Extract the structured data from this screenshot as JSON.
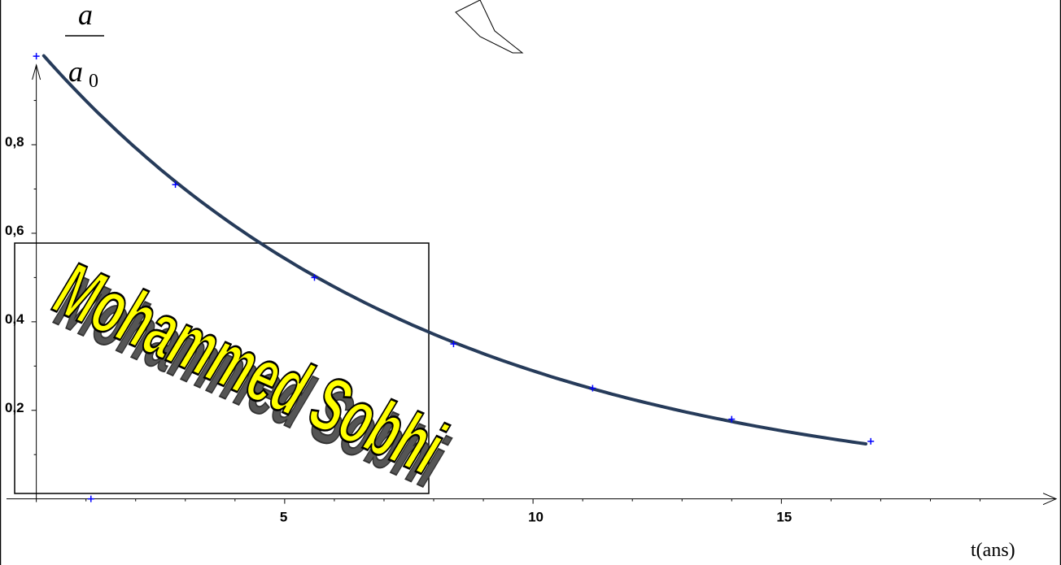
{
  "chart_data": {
    "type": "scatter",
    "title": "",
    "xlabel": "t(ans)",
    "ylabel": {
      "numerator": "a",
      "denominator": "a",
      "denominator_subscript": "0"
    },
    "xlim": [
      -0.6,
      20.4
    ],
    "ylim": [
      -0.03,
      0.98
    ],
    "x_ticks": [
      {
        "value": 5,
        "label": "5"
      },
      {
        "value": 10,
        "label": "10"
      },
      {
        "value": 15,
        "label": "15"
      }
    ],
    "y_ticks": [
      {
        "value": 0.2,
        "label": "0,2"
      },
      {
        "value": 0.4,
        "label": "0,4"
      },
      {
        "value": 0.6,
        "label": "0,6"
      },
      {
        "value": 0.8,
        "label": "0,8"
      }
    ],
    "grid": false,
    "points": [
      {
        "x": 0.0,
        "y": 1.0
      },
      {
        "x": 1.1,
        "y": 0.0
      },
      {
        "x": 2.8,
        "y": 0.71
      },
      {
        "x": 5.6,
        "y": 0.5
      },
      {
        "x": 8.4,
        "y": 0.35
      },
      {
        "x": 11.2,
        "y": 0.25
      },
      {
        "x": 14.0,
        "y": 0.18
      },
      {
        "x": 16.8,
        "y": 0.13
      }
    ],
    "fit_curve": {
      "x_start": 0.15,
      "x_end": 16.7,
      "y0": 1.02,
      "half_life": 5.5
    },
    "colors": {
      "points": "#0000ff",
      "curve": "#263b5a",
      "axes": "#000000",
      "watermark_fill": "#ffff00",
      "watermark_outline": "#000000"
    }
  },
  "watermark": {
    "text": "Mohammed Sobhi",
    "icon": "wordart-signature-logo"
  }
}
